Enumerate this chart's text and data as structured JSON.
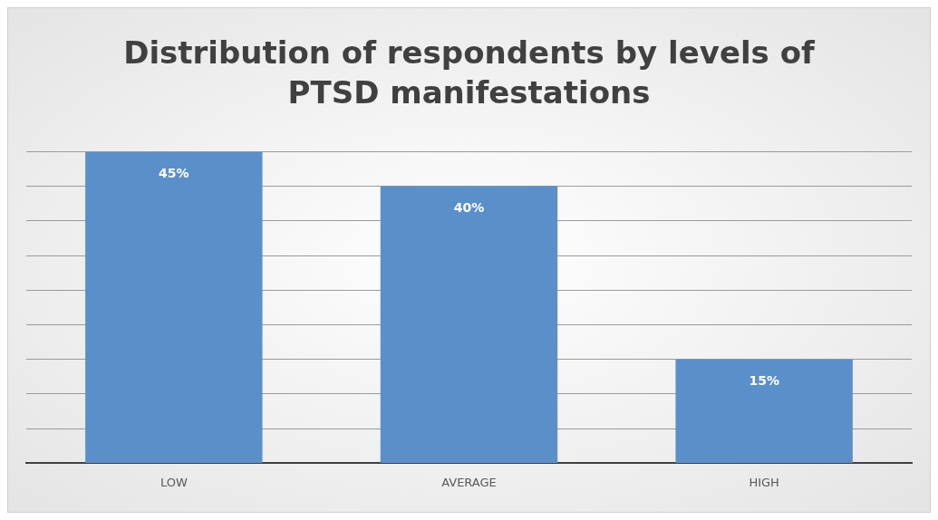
{
  "chart_data": {
    "type": "bar",
    "title": "Distribution of respondents by levels of PTSD manifestations",
    "categories": [
      "LOW",
      "AVERAGE",
      "HIGH"
    ],
    "values": [
      45,
      40,
      15
    ],
    "color": "#5b8fc9",
    "value_labels": [
      "45%",
      "40%",
      "15%"
    ],
    "ylim": [
      0,
      45
    ],
    "yticks": [
      {
        "value": 0,
        "label": null
      },
      {
        "value": 5,
        "label": null
      },
      {
        "value": 10,
        "label": null
      },
      {
        "value": 15,
        "label": null
      },
      {
        "value": 20,
        "label": null
      },
      {
        "value": 25,
        "label": null
      },
      {
        "value": 30,
        "label": null
      },
      {
        "value": 35,
        "label": null
      },
      {
        "value": 40,
        "label": null
      },
      {
        "value": 45,
        "label": null
      }
    ],
    "tick_labels": "x",
    "grid": "y",
    "legend": false
  }
}
